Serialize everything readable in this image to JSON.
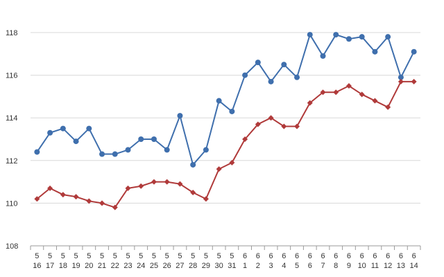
{
  "chart_data": {
    "type": "line",
    "categories": [
      [
        "5",
        "16"
      ],
      [
        "5",
        "17"
      ],
      [
        "5",
        "18"
      ],
      [
        "5",
        "19"
      ],
      [
        "5",
        "20"
      ],
      [
        "5",
        "21"
      ],
      [
        "5",
        "22"
      ],
      [
        "5",
        "23"
      ],
      [
        "5",
        "24"
      ],
      [
        "5",
        "25"
      ],
      [
        "5",
        "26"
      ],
      [
        "5",
        "27"
      ],
      [
        "5",
        "28"
      ],
      [
        "5",
        "29"
      ],
      [
        "5",
        "30"
      ],
      [
        "5",
        "31"
      ],
      [
        "6",
        "1"
      ],
      [
        "6",
        "2"
      ],
      [
        "6",
        "3"
      ],
      [
        "6",
        "4"
      ],
      [
        "6",
        "5"
      ],
      [
        "6",
        "6"
      ],
      [
        "6",
        "7"
      ],
      [
        "6",
        "8"
      ],
      [
        "6",
        "9"
      ],
      [
        "6",
        "10"
      ],
      [
        "6",
        "11"
      ],
      [
        "6",
        "12"
      ],
      [
        "6",
        "13"
      ],
      [
        "6",
        "14"
      ]
    ],
    "ylim": [
      108,
      118
    ],
    "yticks": [
      108,
      110,
      112,
      114,
      116,
      118
    ],
    "grid": true,
    "series": [
      {
        "color": "#3f6fad",
        "marker": "circle",
        "values": [
          112.4,
          113.3,
          113.5,
          112.9,
          113.5,
          112.3,
          112.3,
          112.5,
          113.0,
          113.0,
          112.5,
          114.1,
          111.8,
          112.5,
          114.8,
          114.3,
          116.0,
          116.6,
          115.7,
          116.5,
          115.9,
          117.9,
          116.9,
          117.9,
          117.7,
          117.8,
          117.1,
          117.8,
          115.9,
          117.1
        ]
      },
      {
        "color": "#b03a3a",
        "marker": "diamond",
        "values": [
          110.2,
          110.7,
          110.4,
          110.3,
          110.1,
          110.0,
          109.8,
          110.7,
          110.8,
          111.0,
          111.0,
          110.9,
          110.5,
          110.2,
          111.6,
          111.9,
          113.0,
          113.7,
          114.0,
          113.6,
          113.6,
          114.7,
          115.2,
          115.2,
          115.5,
          115.1,
          114.8,
          114.5,
          115.7,
          115.7
        ]
      }
    ]
  }
}
